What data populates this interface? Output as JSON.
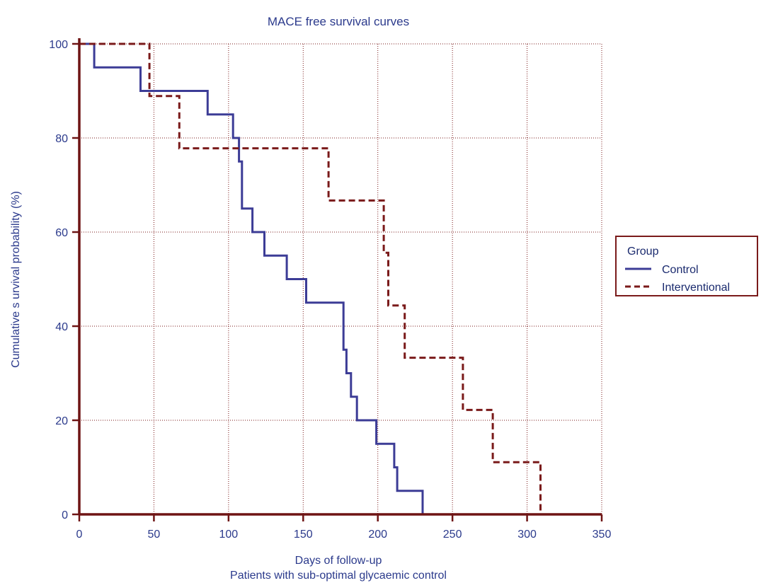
{
  "chart_data": {
    "type": "line",
    "title": "MACE  free survival curves",
    "xlabel": "Days of follow-up",
    "subtitle": "Patients with sub-optimal glycaemic control",
    "ylabel": "Cumulative s urvival probability (%)",
    "xlim": [
      0,
      350
    ],
    "ylim": [
      0,
      100
    ],
    "xticks": [
      "0",
      "50",
      "100",
      "150",
      "200",
      "250",
      "300",
      "350"
    ],
    "yticks": [
      "0",
      "20",
      "40",
      "60",
      "80",
      "100"
    ],
    "grid": true,
    "legend": {
      "title": "Group",
      "placement": "right"
    },
    "series": [
      {
        "name": "Control",
        "color": "#3c3c96",
        "style": "solid",
        "steps": [
          [
            0,
            100
          ],
          [
            10,
            100
          ],
          [
            10,
            95
          ],
          [
            41,
            95
          ],
          [
            41,
            90
          ],
          [
            86,
            90
          ],
          [
            86,
            85
          ],
          [
            103,
            85
          ],
          [
            103,
            80
          ],
          [
            107,
            80
          ],
          [
            107,
            75
          ],
          [
            109,
            75
          ],
          [
            109,
            65
          ],
          [
            116,
            65
          ],
          [
            116,
            60
          ],
          [
            124,
            60
          ],
          [
            124,
            55
          ],
          [
            139,
            55
          ],
          [
            139,
            50
          ],
          [
            152,
            50
          ],
          [
            152,
            45
          ],
          [
            177,
            45
          ],
          [
            177,
            35
          ],
          [
            179,
            35
          ],
          [
            179,
            30
          ],
          [
            182,
            30
          ],
          [
            182,
            25
          ],
          [
            186,
            25
          ],
          [
            186,
            20
          ],
          [
            199,
            20
          ],
          [
            199,
            15
          ],
          [
            211,
            15
          ],
          [
            211,
            10
          ],
          [
            213,
            10
          ],
          [
            213,
            5
          ],
          [
            230,
            5
          ],
          [
            230,
            0
          ]
        ]
      },
      {
        "name": "Interventional",
        "color": "#7a1a1a",
        "style": "dashed",
        "steps": [
          [
            0,
            100
          ],
          [
            47,
            100
          ],
          [
            47,
            88.9
          ],
          [
            67,
            88.9
          ],
          [
            67,
            77.8
          ],
          [
            167,
            77.8
          ],
          [
            167,
            66.7
          ],
          [
            204,
            66.7
          ],
          [
            204,
            55.6
          ],
          [
            207,
            55.6
          ],
          [
            207,
            44.4
          ],
          [
            218,
            44.4
          ],
          [
            218,
            33.3
          ],
          [
            257,
            33.3
          ],
          [
            257,
            22.2
          ],
          [
            277,
            22.2
          ],
          [
            277,
            11.1
          ],
          [
            309,
            11.1
          ],
          [
            309,
            0
          ]
        ]
      }
    ]
  }
}
